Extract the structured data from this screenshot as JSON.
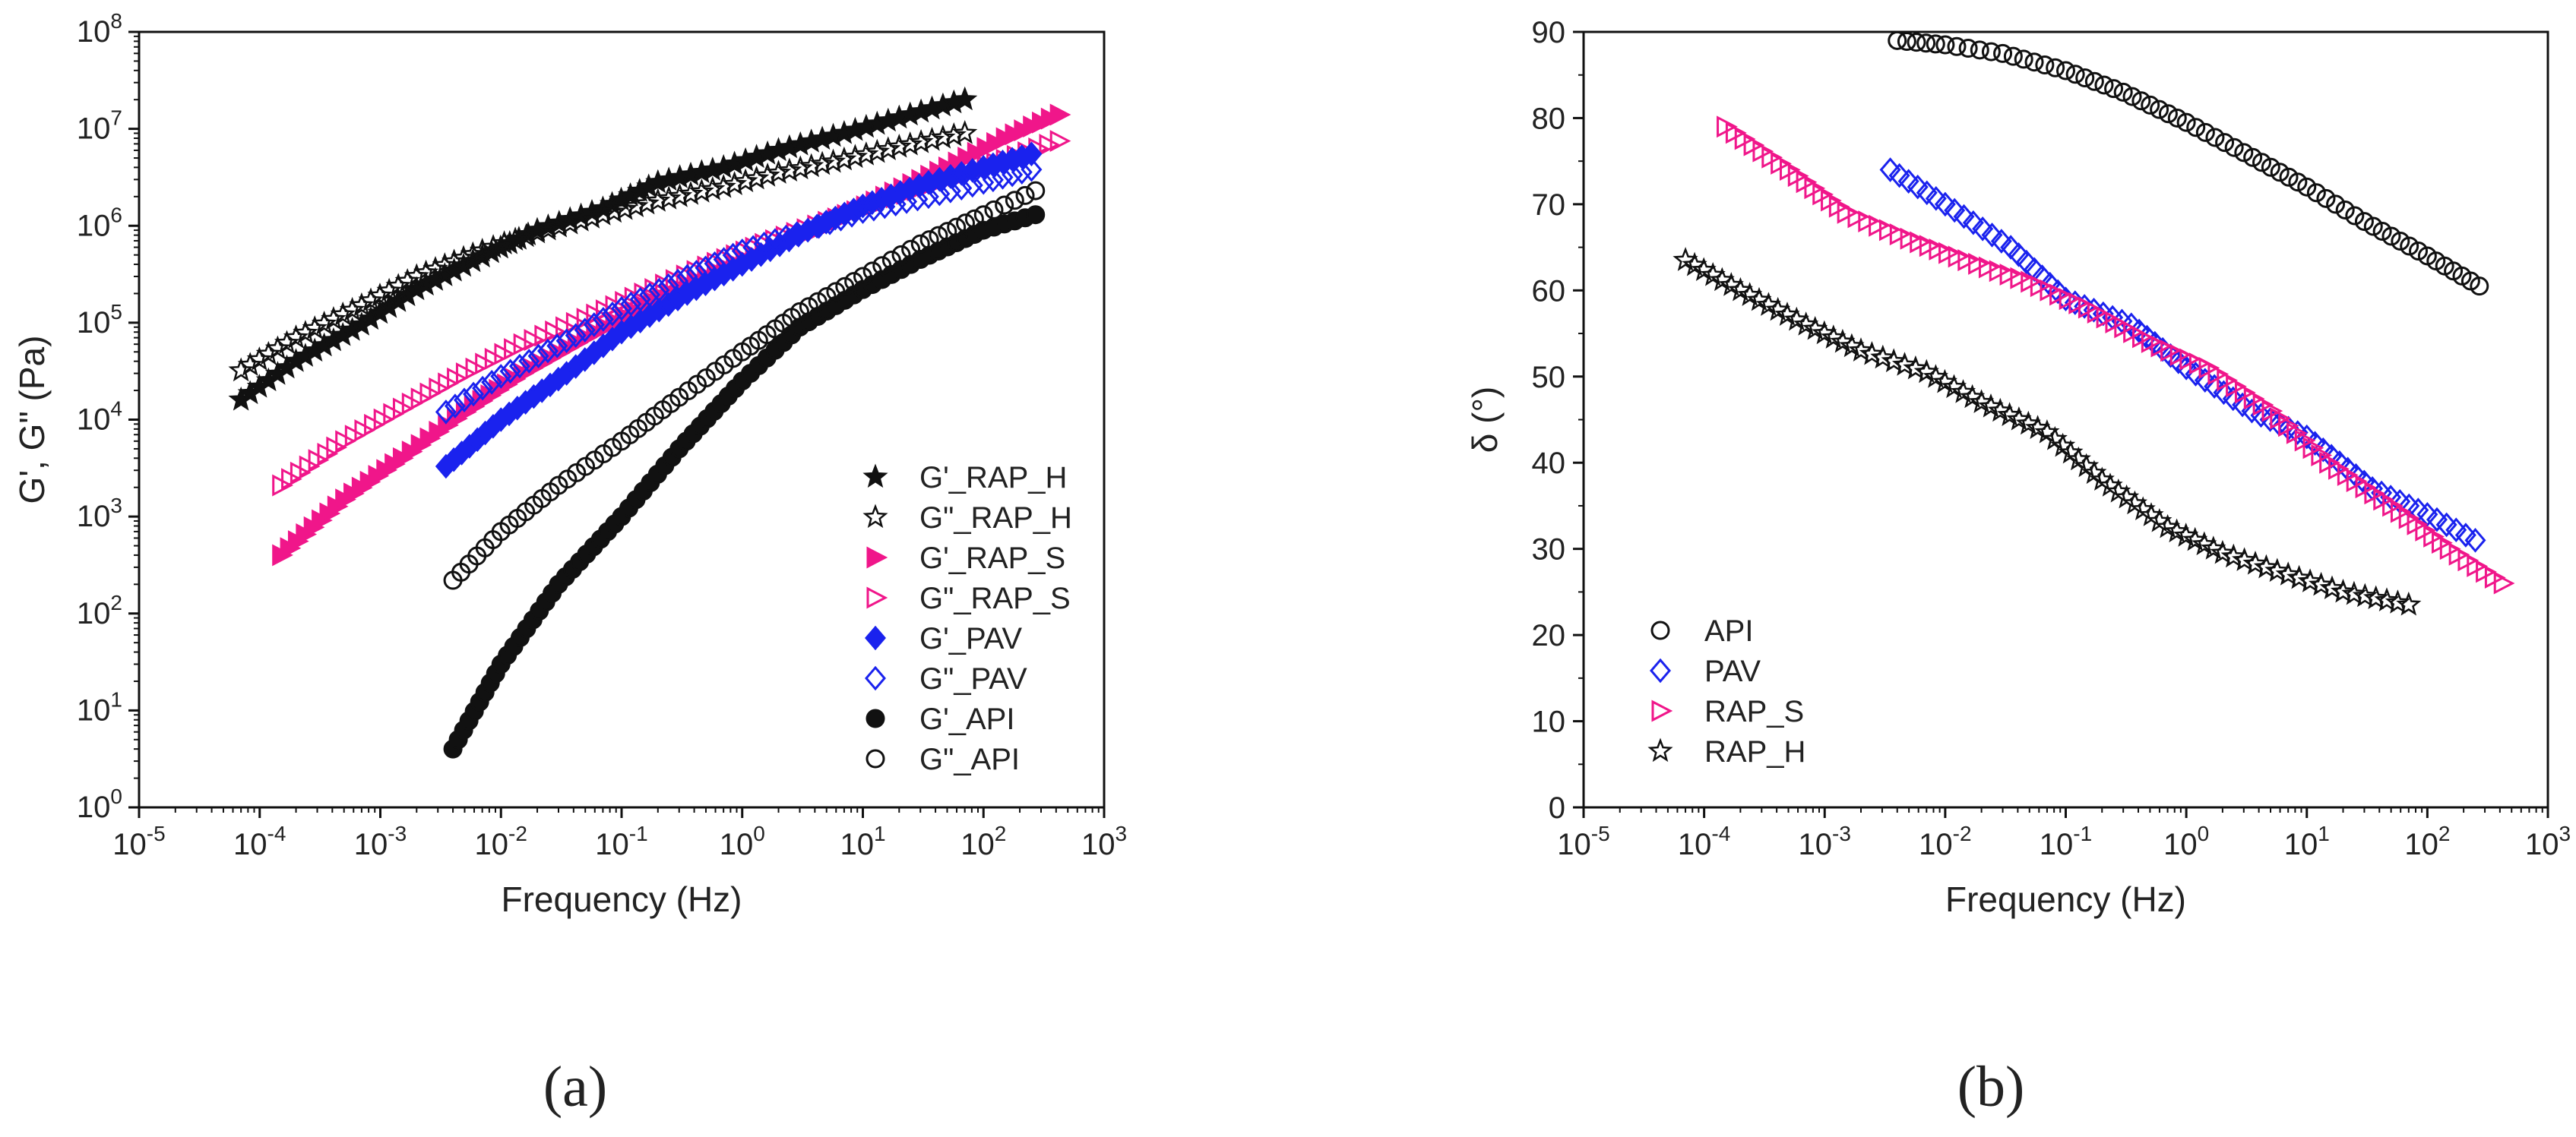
{
  "colors": {
    "black": "#111111",
    "magenta": "#f0168a",
    "blue": "#1a22ee"
  },
  "captions": {
    "a": "(a)",
    "b": "(b)"
  },
  "chart_data": [
    {
      "id": "a",
      "type": "scatter",
      "xscale": "log",
      "yscale": "log",
      "xlabel": "Frequency (Hz)",
      "ylabel": "G', G\" (Pa)",
      "xlim": [
        1e-05,
        1000
      ],
      "ylim": [
        1,
        100000000
      ],
      "legend_position": "lower-right",
      "series": [
        {
          "name": "G'_RAP_H",
          "marker": "star-filled",
          "color": "black",
          "x": [
            7e-05,
            0.0002,
            0.0007,
            0.002,
            0.007,
            0.02,
            0.07,
            0.2,
            0.7,
            2,
            7,
            20,
            70
          ],
          "y": [
            16000,
            40000,
            95000,
            220000,
            480000,
            900000,
            1500000,
            2800000,
            4000000,
            6000000,
            9000000,
            13000000,
            20000000
          ]
        },
        {
          "name": "G\"_RAP_H",
          "marker": "star-open",
          "color": "black",
          "x": [
            7e-05,
            0.0002,
            0.0007,
            0.002,
            0.007,
            0.02,
            0.07,
            0.2,
            0.7,
            2,
            7,
            20,
            70
          ],
          "y": [
            32000,
            70000,
            150000,
            300000,
            550000,
            850000,
            1300000,
            1800000,
            2500000,
            3500000,
            4800000,
            6500000,
            9000000
          ]
        },
        {
          "name": "G'_RAP_S",
          "marker": "triangle-right-filled",
          "color": "magenta",
          "x": [
            0.00015,
            0.0005,
            0.0015,
            0.005,
            0.015,
            0.05,
            0.15,
            0.5,
            1.5,
            5,
            15,
            50,
            150,
            420
          ],
          "y": [
            400,
            1500,
            4000,
            12000,
            30000,
            70000,
            150000,
            300000,
            550000,
            1000000,
            2000000,
            4000000,
            8000000,
            14000000
          ]
        },
        {
          "name": "G\"_RAP_S",
          "marker": "triangle-right-open",
          "color": "magenta",
          "x": [
            0.00015,
            0.0005,
            0.0015,
            0.005,
            0.015,
            0.05,
            0.15,
            0.5,
            1.5,
            5,
            15,
            50,
            150,
            420
          ],
          "y": [
            2100,
            6000,
            13000,
            30000,
            60000,
            110000,
            200000,
            380000,
            650000,
            1100000,
            1800000,
            3000000,
            4800000,
            7500000
          ]
        },
        {
          "name": "G'_PAV",
          "marker": "diamond-filled",
          "color": "blue",
          "x": [
            0.0035,
            0.01,
            0.035,
            0.1,
            0.35,
            1,
            3.5,
            10,
            35,
            100,
            250
          ],
          "y": [
            3300,
            10000,
            30000,
            80000,
            200000,
            400000,
            900000,
            1600000,
            2800000,
            4000000,
            5500000
          ]
        },
        {
          "name": "G\"_PAV",
          "marker": "diamond-open",
          "color": "blue",
          "x": [
            0.0035,
            0.01,
            0.035,
            0.1,
            0.35,
            1,
            3.5,
            10,
            35,
            100,
            250
          ],
          "y": [
            12000,
            28000,
            65000,
            140000,
            300000,
            550000,
            900000,
            1400000,
            2000000,
            2800000,
            3800000
          ]
        },
        {
          "name": "G'_API",
          "marker": "circle-filled",
          "color": "black",
          "x": [
            0.004,
            0.01,
            0.03,
            0.1,
            0.3,
            1,
            3,
            10,
            30,
            100,
            270
          ],
          "y": [
            4,
            30,
            200,
            1000,
            5000,
            25000,
            90000,
            220000,
            450000,
            900000,
            1300000
          ]
        },
        {
          "name": "G\"_API",
          "marker": "circle-open",
          "color": "black",
          "x": [
            0.004,
            0.01,
            0.03,
            0.1,
            0.3,
            1,
            3,
            10,
            30,
            100,
            270
          ],
          "y": [
            220,
            700,
            2100,
            6000,
            17000,
            50000,
            130000,
            300000,
            650000,
            1300000,
            2300000
          ]
        }
      ]
    },
    {
      "id": "b",
      "type": "scatter",
      "xscale": "log",
      "yscale": "linear",
      "xlabel": "Frequency (Hz)",
      "ylabel": "δ (°)",
      "xlim": [
        1e-05,
        1000
      ],
      "ylim": [
        0,
        90
      ],
      "yticks": [
        0,
        10,
        20,
        30,
        40,
        50,
        60,
        70,
        80,
        90
      ],
      "legend_position": "lower-left",
      "series": [
        {
          "name": "API",
          "marker": "circle-open",
          "color": "black",
          "x": [
            0.004,
            0.01,
            0.03,
            0.1,
            0.3,
            1,
            3,
            10,
            30,
            100,
            270
          ],
          "y": [
            89,
            88.5,
            87.5,
            85.5,
            83,
            79.5,
            76,
            72,
            68,
            64,
            60.5
          ]
        },
        {
          "name": "PAV",
          "marker": "diamond-open",
          "color": "blue",
          "x": [
            0.0035,
            0.01,
            0.035,
            0.1,
            0.35,
            1,
            3.5,
            10,
            35,
            100,
            250
          ],
          "y": [
            74,
            70,
            65,
            59,
            56,
            51,
            46,
            43,
            37,
            34,
            31
          ]
        },
        {
          "name": "RAP_S",
          "marker": "triangle-right-open",
          "color": "magenta",
          "x": [
            0.00015,
            0.0005,
            0.0015,
            0.005,
            0.015,
            0.05,
            0.15,
            0.5,
            1.5,
            5,
            15,
            50,
            150,
            420
          ],
          "y": [
            79,
            74,
            69,
            66,
            63.5,
            61,
            58,
            54,
            51,
            46,
            40,
            35,
            30,
            26
          ]
        },
        {
          "name": "RAP_H",
          "marker": "star-open",
          "color": "black",
          "x": [
            7e-05,
            0.0002,
            0.0007,
            0.002,
            0.007,
            0.02,
            0.07,
            0.2,
            0.7,
            2,
            7,
            20,
            70
          ],
          "y": [
            63.5,
            60,
            56,
            53,
            50.5,
            47,
            43.5,
            38,
            32.5,
            29.5,
            27,
            25,
            23.5
          ]
        }
      ]
    }
  ]
}
